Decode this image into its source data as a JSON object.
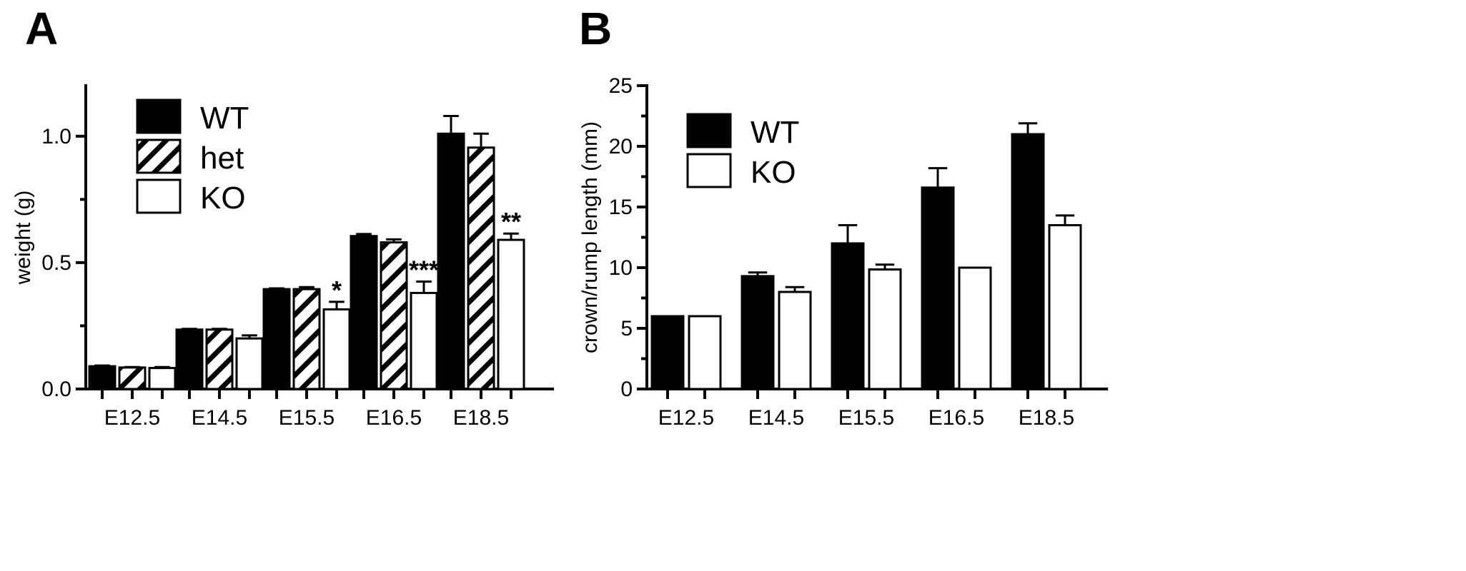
{
  "chart_data": [
    {
      "panel": "A",
      "type": "bar",
      "ylabel": "weight (g)",
      "xlabel": "",
      "ylim": [
        0,
        1.2
      ],
      "yticks": [
        0.0,
        0.5,
        1.0
      ],
      "ytick_labels": [
        "0.0",
        "0.5",
        "1.0"
      ],
      "categories": [
        "E12.5",
        "E14.5",
        "E15.5",
        "E16.5",
        "E18.5"
      ],
      "legend_position": "top-left",
      "series": [
        {
          "name": "WT",
          "fill": "solid",
          "values": [
            0.09,
            0.235,
            0.395,
            0.605,
            1.01
          ],
          "errors": [
            0.003,
            0.003,
            0.003,
            0.008,
            0.07
          ]
        },
        {
          "name": "het",
          "fill": "hatched",
          "values": [
            0.085,
            0.235,
            0.395,
            0.58,
            0.955
          ],
          "errors": [
            0.002,
            0.003,
            0.008,
            0.012,
            0.055
          ]
        },
        {
          "name": "KO",
          "fill": "open",
          "values": [
            0.083,
            0.2,
            0.315,
            0.38,
            0.59
          ],
          "errors": [
            0.004,
            0.012,
            0.03,
            0.045,
            0.025
          ]
        }
      ],
      "annotations": [
        {
          "category": "E15.5",
          "series": "KO",
          "text": "*"
        },
        {
          "category": "E16.5",
          "series": "KO",
          "text": "***"
        },
        {
          "category": "E18.5",
          "series": "KO",
          "text": "**"
        }
      ]
    },
    {
      "panel": "B",
      "type": "bar",
      "ylabel": "crown/rump length (mm)",
      "xlabel": "",
      "ylim": [
        0,
        25
      ],
      "yticks": [
        0,
        5,
        10,
        15,
        20,
        25
      ],
      "ytick_labels": [
        "0",
        "5",
        "10",
        "15",
        "20",
        "25"
      ],
      "categories": [
        "E12.5",
        "E14.5",
        "E15.5",
        "E16.5",
        "E18.5"
      ],
      "legend_position": "top-left",
      "series": [
        {
          "name": "WT",
          "fill": "solid",
          "values": [
            6.0,
            9.3,
            12.0,
            16.6,
            21.0
          ],
          "errors": [
            0,
            0.3,
            1.5,
            1.6,
            0.9
          ]
        },
        {
          "name": "KO",
          "fill": "open",
          "values": [
            6.0,
            8.0,
            9.85,
            10.0,
            13.5
          ],
          "errors": [
            0,
            0.4,
            0.4,
            0,
            0.8
          ]
        }
      ]
    }
  ]
}
